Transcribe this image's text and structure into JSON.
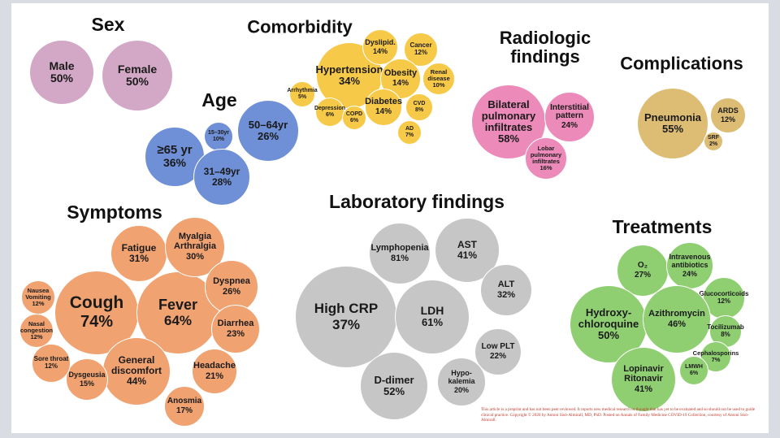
{
  "colors": {
    "sex": "#d3a8c6",
    "age": "#6f8fd6",
    "comorbidity": "#f7c948",
    "radiologic": "#ec8ab9",
    "complications": "#ddbc74",
    "symptoms": "#f0a271",
    "laboratory": "#c6c6c6",
    "treatments": "#8fcf72"
  },
  "groups": [
    {
      "key": "sex",
      "title": "Sex",
      "items": [
        {
          "label": "Male",
          "value": "50%"
        },
        {
          "label": "Female",
          "value": "50%"
        }
      ]
    },
    {
      "key": "age",
      "title": "Age",
      "items": [
        {
          "label": "≥65 yr",
          "value": "36%"
        },
        {
          "label": "15–30yr",
          "value": "10%"
        },
        {
          "label": "50–64yr",
          "value": "26%"
        },
        {
          "label": "31–49yr",
          "value": "28%"
        }
      ]
    },
    {
      "key": "comorbidity",
      "title": "Comorbidity",
      "items": [
        {
          "label": "Hypertension",
          "value": "34%"
        },
        {
          "label": "Dyslipid.",
          "value": "14%"
        },
        {
          "label": "Cancer",
          "value": "12%"
        },
        {
          "label": "Obesity",
          "value": "14%"
        },
        {
          "label": "Renal\ndisease",
          "value": "10%"
        },
        {
          "label": "Arrhythmia",
          "value": "5%"
        },
        {
          "label": "Depression",
          "value": "6%"
        },
        {
          "label": "COPD",
          "value": "6%"
        },
        {
          "label": "Diabetes",
          "value": "14%"
        },
        {
          "label": "CVD",
          "value": "8%"
        },
        {
          "label": "AD",
          "value": "7%"
        }
      ]
    },
    {
      "key": "radiologic",
      "title": "Radiologic\nfindings",
      "items": [
        {
          "label": "Bilateral\npulmonary\ninfiltrates",
          "value": "58%"
        },
        {
          "label": "Interstitial\npattern",
          "value": "24%"
        },
        {
          "label": "Lobar\npulmonary\ninfiltrates",
          "value": "16%"
        }
      ]
    },
    {
      "key": "complications",
      "title": "Complications",
      "items": [
        {
          "label": "Pneumonia",
          "value": "55%"
        },
        {
          "label": "ARDS",
          "value": "12%"
        },
        {
          "label": "SRF",
          "value": "2%"
        }
      ]
    },
    {
      "key": "symptoms",
      "title": "Symptoms",
      "items": [
        {
          "label": "Cough",
          "value": "74%"
        },
        {
          "label": "Fever",
          "value": "64%"
        },
        {
          "label": "Fatigue",
          "value": "31%"
        },
        {
          "label": "Myalgia\nArthralgia",
          "value": "30%"
        },
        {
          "label": "Dyspnea",
          "value": "26%"
        },
        {
          "label": "Diarrhea",
          "value": "23%"
        },
        {
          "label": "Headache",
          "value": "21%"
        },
        {
          "label": "General\ndiscomfort",
          "value": "44%"
        },
        {
          "label": "Anosmia",
          "value": "17%"
        },
        {
          "label": "Dysgeusia",
          "value": "15%"
        },
        {
          "label": "Sore throat",
          "value": "12%"
        },
        {
          "label": "Nasal\ncongestion",
          "value": "12%"
        },
        {
          "label": "Nausea\nVomiting",
          "value": "12%"
        }
      ]
    },
    {
      "key": "laboratory",
      "title": "Laboratory findings",
      "items": [
        {
          "label": "Lymphopenia",
          "value": "81%"
        },
        {
          "label": "AST",
          "value": "41%"
        },
        {
          "label": "High CRP",
          "value": "37%"
        },
        {
          "label": "LDH",
          "value": "61%"
        },
        {
          "label": "ALT",
          "value": "32%"
        },
        {
          "label": "Low PLT",
          "value": "22%"
        },
        {
          "label": "D-dimer",
          "value": "52%"
        },
        {
          "label": "Hypo-\nkalemia",
          "value": "20%"
        }
      ]
    },
    {
      "key": "treatments",
      "title": "Treatments",
      "items": [
        {
          "label": "O₂",
          "value": "27%"
        },
        {
          "label": "Intravenous\nantibiotics",
          "value": "24%"
        },
        {
          "label": "Glucocorticoids",
          "value": "12%"
        },
        {
          "label": "Hydroxy-\nchloroquine",
          "value": "50%"
        },
        {
          "label": "Azithromycin",
          "value": "46%"
        },
        {
          "label": "Tocilizumab",
          "value": "8%"
        },
        {
          "label": "Cephalosporins",
          "value": "7%"
        },
        {
          "label": "LMWH",
          "value": "6%"
        },
        {
          "label": "Lopinavir\nRitonavir",
          "value": "41%"
        }
      ]
    }
  ],
  "footnote": "This article is a preprint and has not been peer reviewed. It reports new medical research or thought that has yet to be evaluated and so should not be used to guide clinical practice. Copyright © 2020 by Antoni Sisó-Almirall, MD, PhD. Posted on Annals of Family Medicine COVID-19 Collection, courtesy of Antoni Sisó-Almirall."
}
